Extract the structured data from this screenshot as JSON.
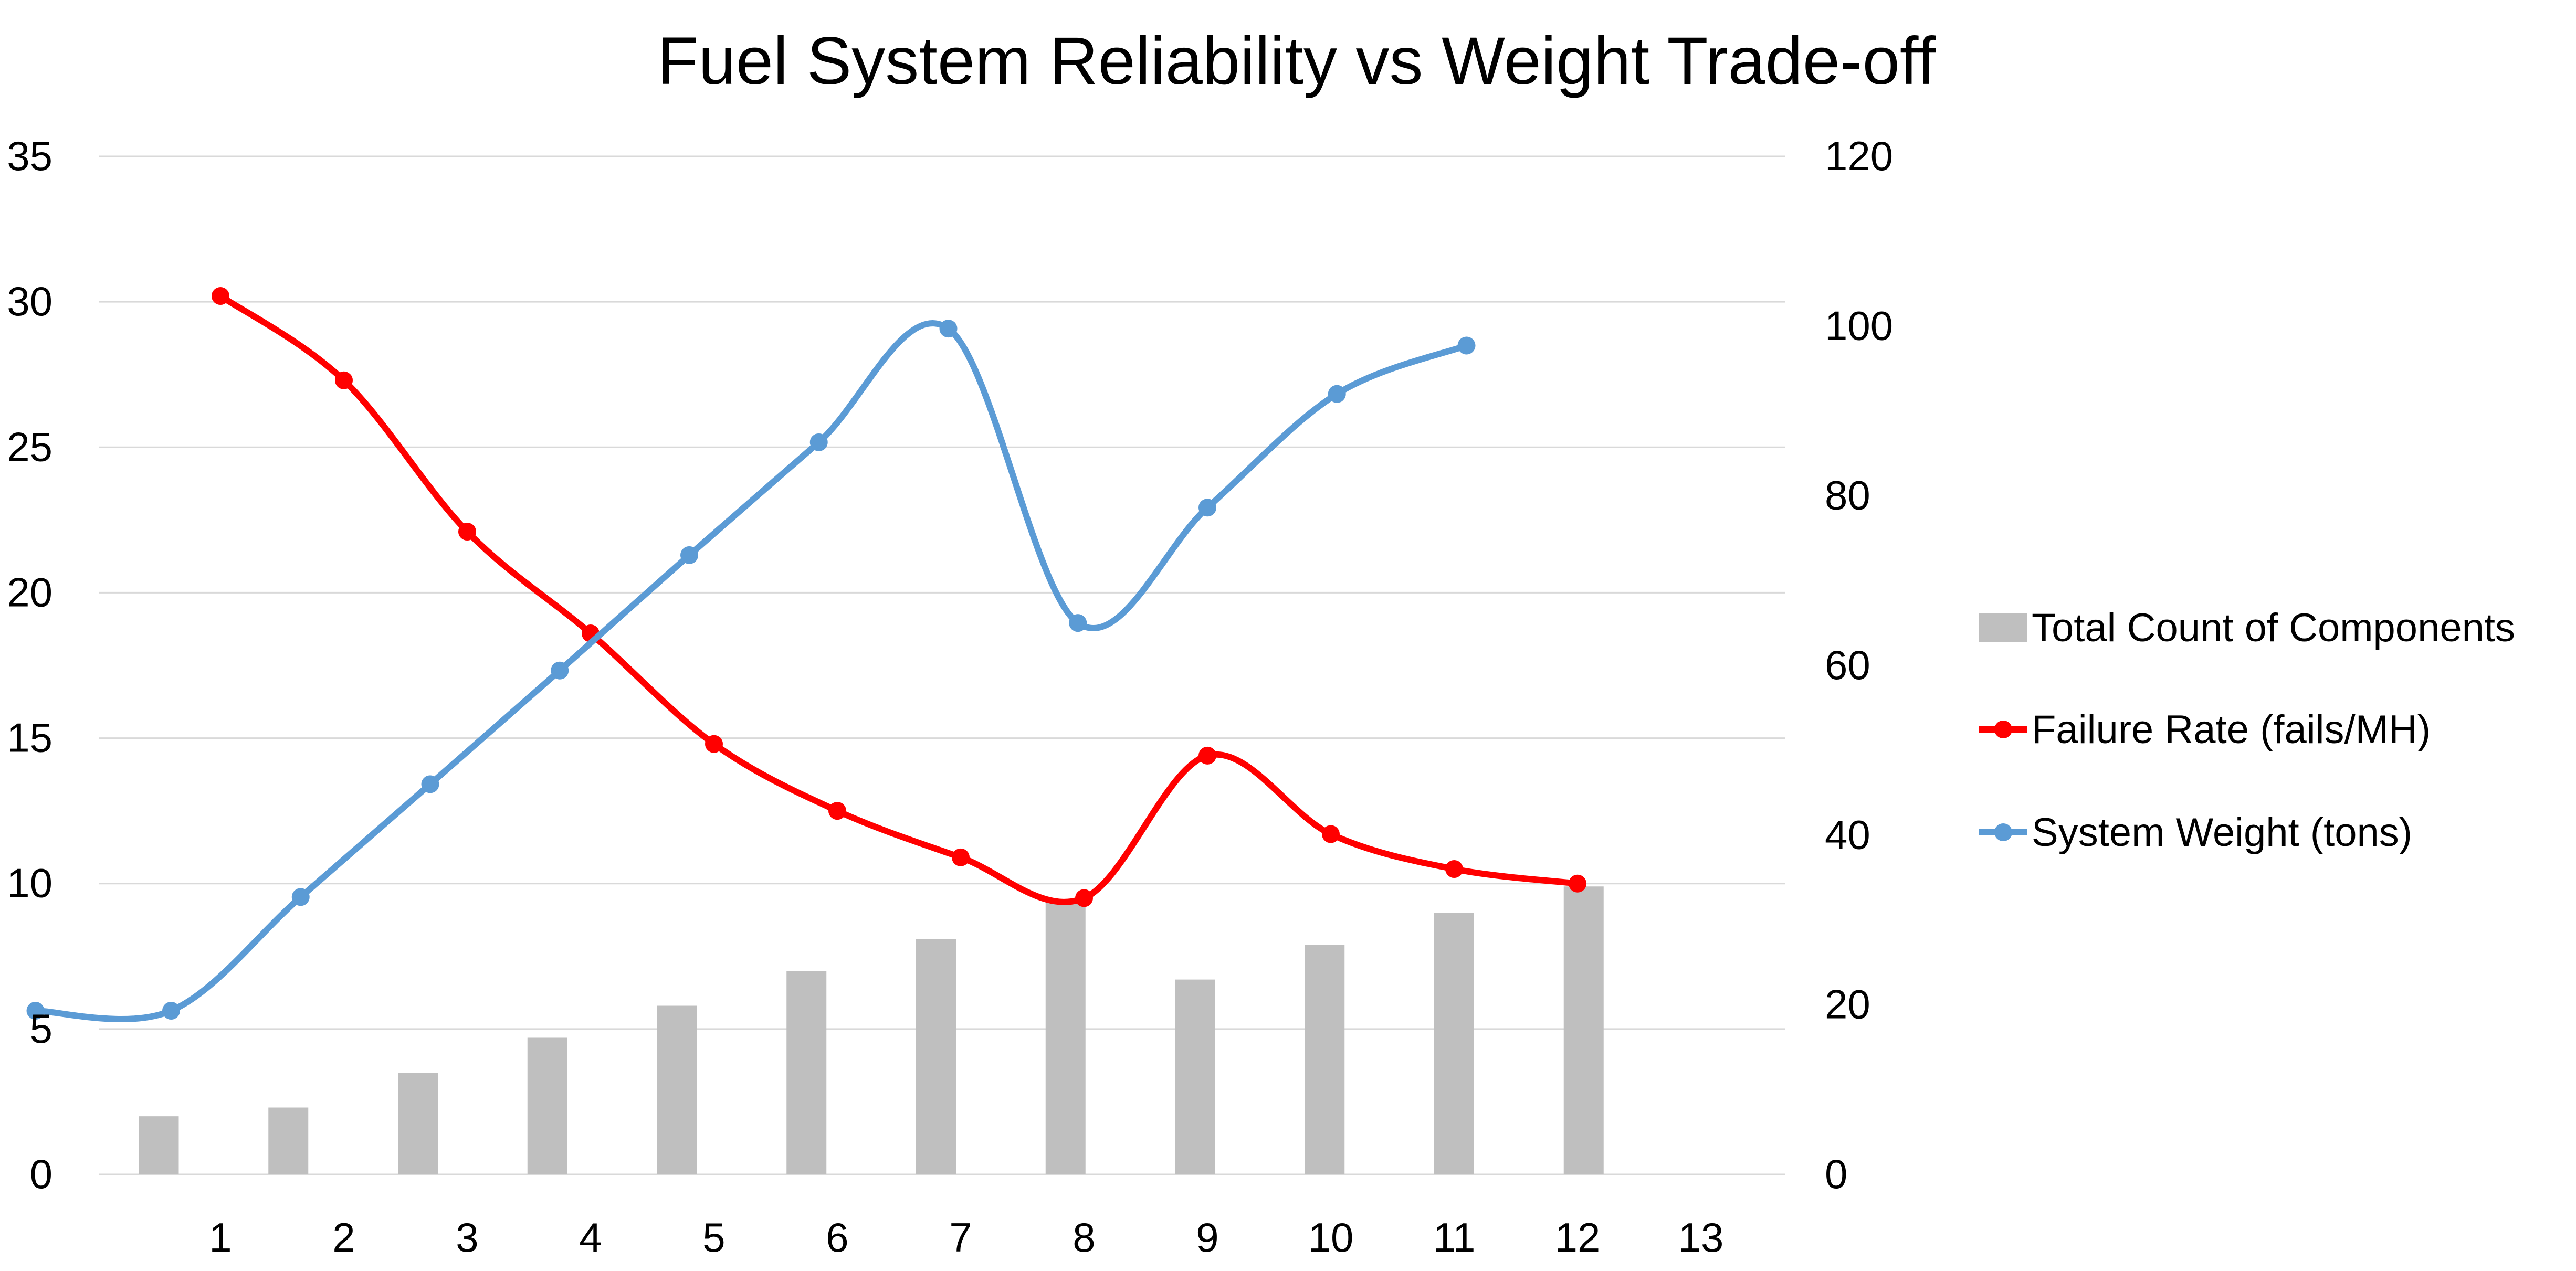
{
  "chart_data": {
    "type": "bar+line",
    "title": "Fuel System Reliability vs Weight Trade-off",
    "x_ticks": [
      "1",
      "2",
      "3",
      "4",
      "5",
      "6",
      "7",
      "8",
      "9",
      "10",
      "11",
      "12",
      "13"
    ],
    "left_axis": {
      "ylim": [
        0,
        35
      ],
      "ticks": [
        "0",
        "5",
        "10",
        "15",
        "20",
        "25",
        "30",
        "35"
      ]
    },
    "right_axis": {
      "ylim": [
        0,
        120
      ],
      "ticks": [
        "0",
        "20",
        "40",
        "60",
        "80",
        "100",
        "120"
      ]
    },
    "grid": true,
    "legend_position": "right",
    "bars": {
      "name": "Total Count of Components",
      "axis": "left",
      "color": "#bfbfbf",
      "x": [
        0.5,
        1.55,
        2.6,
        3.65,
        4.7,
        5.75,
        6.8,
        7.85,
        8.9,
        9.95,
        11.0,
        12.05
      ],
      "values": [
        2.0,
        2.3,
        3.5,
        4.7,
        5.8,
        7.0,
        8.1,
        9.4,
        6.7,
        7.9,
        9.0,
        9.9
      ]
    },
    "series": [
      {
        "name": "Failure Rate  (fails/MH)",
        "axis": "left",
        "color": "#ff0000",
        "x": [
          1,
          2,
          3,
          4,
          5,
          6,
          7,
          8,
          9,
          10,
          11,
          12
        ],
        "values": [
          30.2,
          27.3,
          22.1,
          18.6,
          14.8,
          12.5,
          10.9,
          9.5,
          14.4,
          11.7,
          10.5,
          10.0
        ]
      },
      {
        "name": "System Weight  (tons)",
        "axis": "right",
        "color": "#5b9bd5",
        "x": [
          -0.5,
          0.6,
          1.65,
          2.7,
          3.75,
          4.8,
          5.85,
          6.9,
          7.95,
          9.0,
          10.05,
          11.1
        ],
        "values": [
          19.3,
          19.3,
          32.7,
          46.0,
          59.4,
          73.0,
          86.3,
          99.7,
          65.0,
          78.6,
          92.0,
          97.7
        ]
      }
    ]
  }
}
